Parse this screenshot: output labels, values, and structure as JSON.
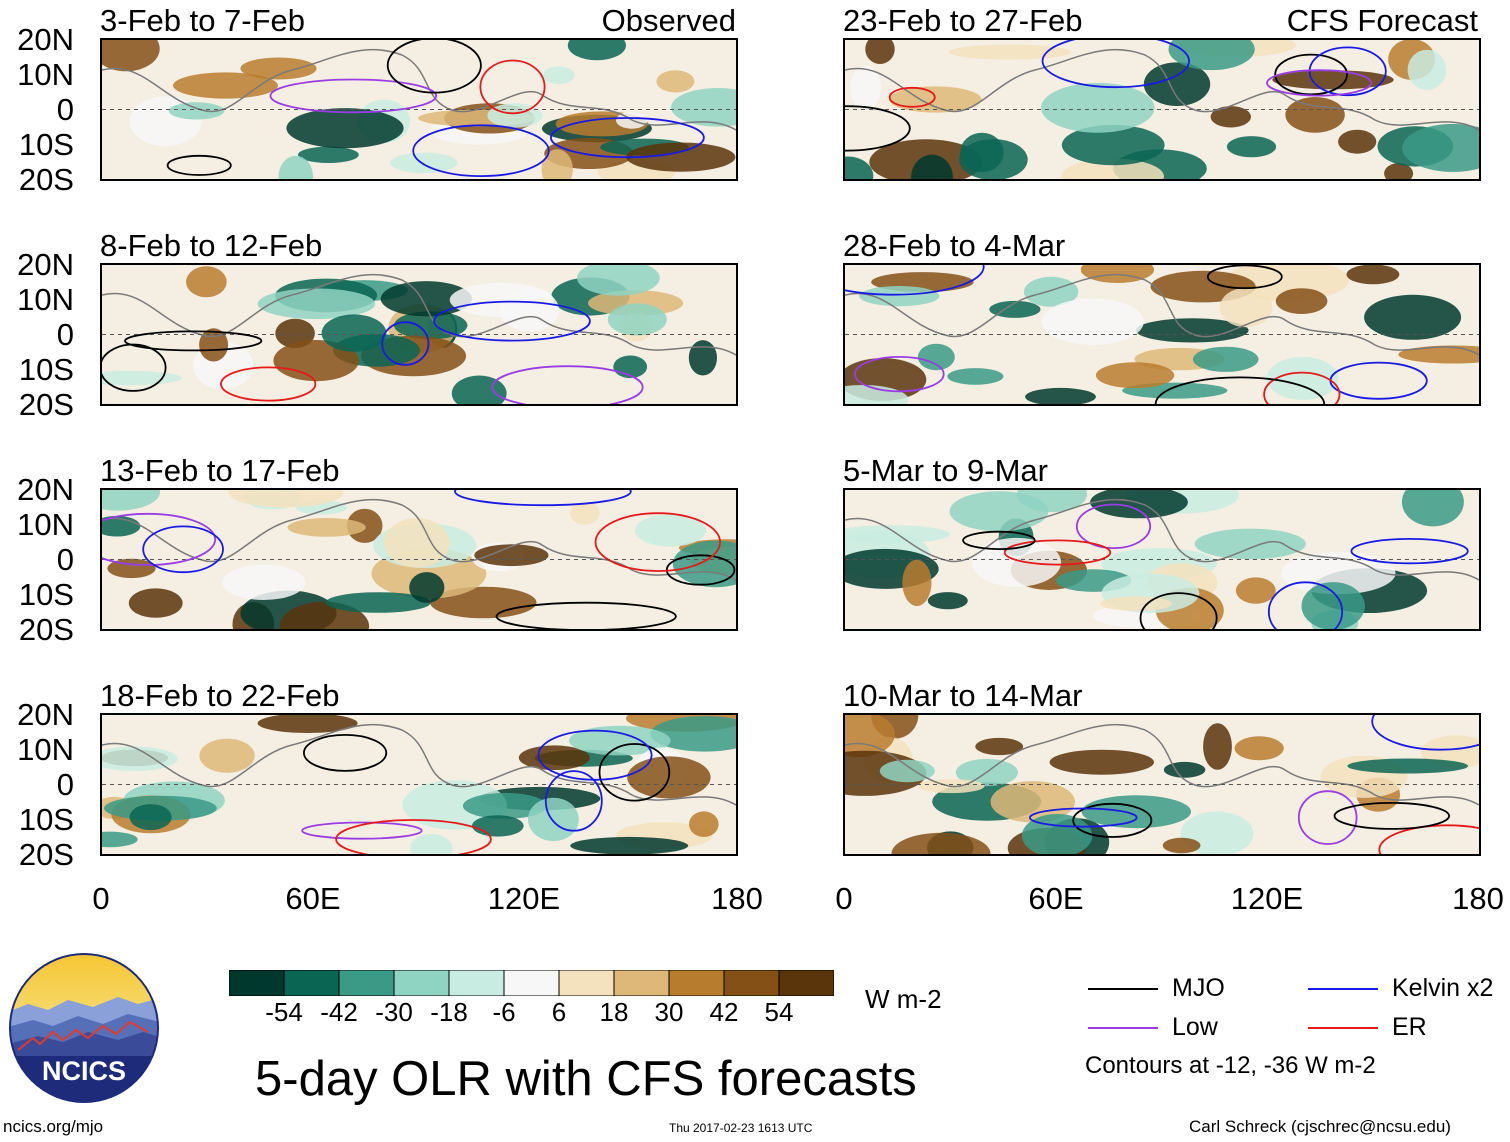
{
  "panels": [
    {
      "title": "3-Feb to 7-Feb",
      "tag": "Observed"
    },
    {
      "title": "8-Feb to 12-Feb",
      "tag": ""
    },
    {
      "title": "13-Feb to 17-Feb",
      "tag": ""
    },
    {
      "title": "18-Feb to 22-Feb",
      "tag": ""
    },
    {
      "title": "23-Feb to 27-Feb",
      "tag": "CFS Forecast"
    },
    {
      "title": "28-Feb to 4-Mar",
      "tag": ""
    },
    {
      "title": "5-Mar to 9-Mar",
      "tag": ""
    },
    {
      "title": "10-Mar to 14-Mar",
      "tag": ""
    }
  ],
  "lat_labels": [
    "20N",
    "10N",
    "0",
    "10S",
    "20S"
  ],
  "lon_labels": [
    "0",
    "60E",
    "120E",
    "180"
  ],
  "colorbar": {
    "labels": [
      "-54",
      "-42",
      "-30",
      "-18",
      "-6",
      "6",
      "18",
      "30",
      "42",
      "54"
    ],
    "colors": [
      "#00382e",
      "#0a6553",
      "#3a9a86",
      "#8fd3c2",
      "#c9ece2",
      "#f7f7f7",
      "#f3e2bd",
      "#ddb878",
      "#b87c2e",
      "#845016",
      "#5a340a"
    ],
    "units": "W m-2"
  },
  "legend": {
    "mjo": {
      "label": "MJO",
      "color": "#000000"
    },
    "kelvin": {
      "label": "Kelvin x2",
      "color": "#1a1ae6"
    },
    "low": {
      "label": "Low",
      "color": "#9a3de6"
    },
    "er": {
      "label": "ER",
      "color": "#e61a1a"
    },
    "note": "Contours at -12, -36 W m-2"
  },
  "title": "5-day OLR with CFS forecasts",
  "logo_text": "NCICS",
  "footer": {
    "left": "ncics.org/mjo",
    "center": "Thu 2017-02-23 1613 UTC",
    "right": "Carl Schreck (cjschrec@ncsu.edu)"
  }
}
